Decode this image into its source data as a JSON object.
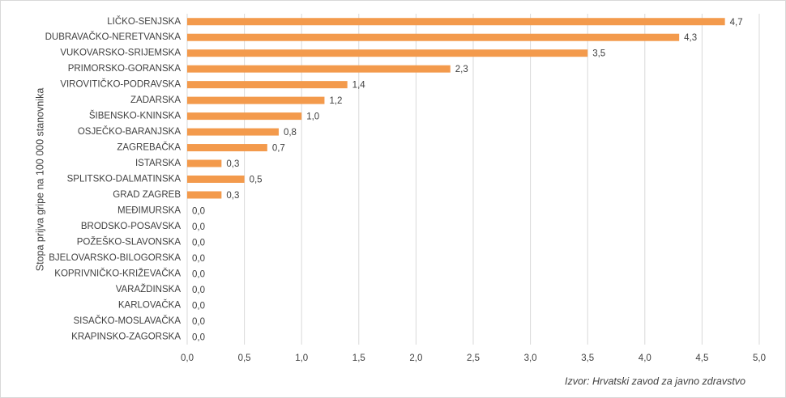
{
  "chart_data": {
    "type": "bar",
    "orientation": "horizontal",
    "y_label": "Stopa prijva gripe na 100 000 stanovnika",
    "source": "Izvor: Hrvatski zavod za javno zdravstvo",
    "color": "#f39a4c",
    "grid": true,
    "categories": [
      "LIČKO-SENJSKA",
      "DUBRAVAČKO-NERETVANSKA",
      "VUKOVARSKO-SRIJEMSKA",
      "PRIMORSKO-GORANSKA",
      "VIROVITIČKO-PODRAVSKA",
      "ZADARSKA",
      "ŠIBENSKO-KNINSKA",
      "OSJEČKO-BARANJSKA",
      "ZAGREBAČKA",
      "ISTARSKA",
      "SPLITSKO-DALMATINSKA",
      "GRAD ZAGREB",
      "MEĐIMURSKA",
      "BRODSKO-POSAVSKA",
      "POŽEŠKO-SLAVONSKA",
      "BJELOVARSKO-BILOGORSKA",
      "KOPRIVNIČKO-KRIŽEVAČKA",
      "VARAŽDINSKA",
      "KARLOVAČKA",
      "SISAČKO-MOSLAVAČKA",
      "KRAPINSKO-ZAGORSKA"
    ],
    "values": [
      4.7,
      4.3,
      3.5,
      2.3,
      1.4,
      1.2,
      1.0,
      0.8,
      0.7,
      0.3,
      0.5,
      0.3,
      0,
      0,
      0,
      0,
      0,
      0,
      0,
      0,
      0
    ],
    "value_labels": [
      "4,7",
      "4,3",
      "3,5",
      "2,3",
      "1,4",
      "1,2",
      "1,0",
      "0,8",
      "0,7",
      "0,3",
      "0,5",
      "0,3",
      "0,0",
      "0,0",
      "0,0",
      "0,0",
      "0,0",
      "0,0",
      "0,0",
      "0,0",
      "0,0"
    ],
    "xlim": [
      0,
      5
    ],
    "xticks": [
      {
        "value": 0,
        "label": "0,0"
      },
      {
        "value": 0.5,
        "label": "0,5"
      },
      {
        "value": 1,
        "label": "1,0"
      },
      {
        "value": 1.5,
        "label": "1,5"
      },
      {
        "value": 2,
        "label": "2,0"
      },
      {
        "value": 2.5,
        "label": "2,5"
      },
      {
        "value": 3,
        "label": "3,0"
      },
      {
        "value": 3.5,
        "label": "3,5"
      },
      {
        "value": 4,
        "label": "4,0"
      },
      {
        "value": 4.5,
        "label": "4,5"
      },
      {
        "value": 5,
        "label": "5,0"
      }
    ]
  }
}
